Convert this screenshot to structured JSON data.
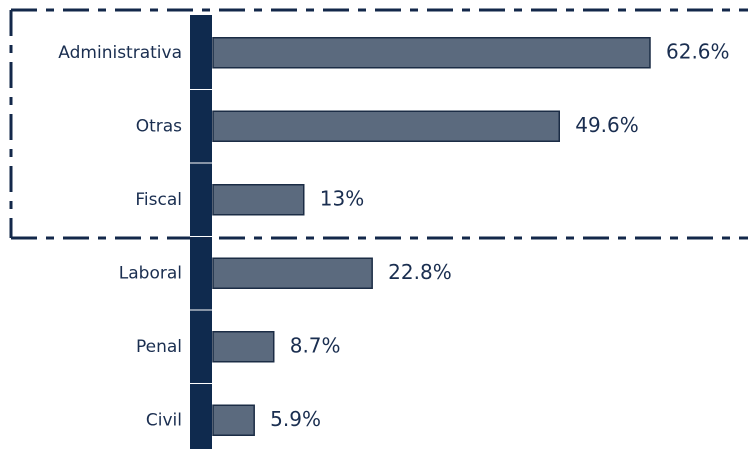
{
  "chart_data": {
    "type": "bar",
    "orientation": "horizontal",
    "categories": [
      "Administrativa",
      "Otras",
      "Fiscal",
      "Laboral",
      "Penal",
      "Civil"
    ],
    "values": [
      62.6,
      49.6,
      13,
      22.8,
      8.7,
      5.9
    ],
    "value_labels": [
      "62.6%",
      "49.6%",
      "13%",
      "22.8%",
      "8.7%",
      "5.9%"
    ],
    "color": "#5b6a7e"
  }
}
